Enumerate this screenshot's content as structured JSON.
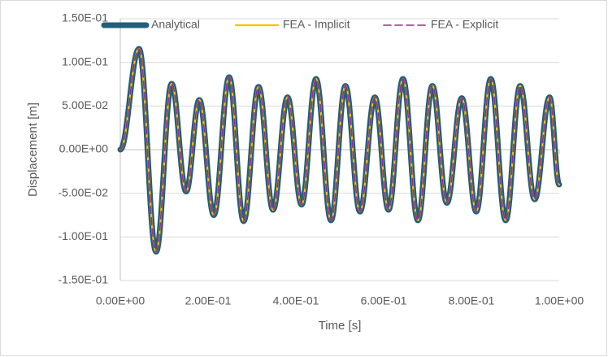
{
  "chart_data": {
    "type": "line",
    "xlabel": "Time [s]",
    "ylabel": "Displacement [m]",
    "x": [
      0,
      0.0426,
      0.0815,
      0.117,
      0.15,
      0.18,
      0.213,
      0.248,
      0.281,
      0.315,
      0.348,
      0.381,
      0.413,
      0.446,
      0.48,
      0.513,
      0.546,
      0.58,
      0.611,
      0.644,
      0.678,
      0.711,
      0.744,
      0.778,
      0.811,
      0.844,
      0.878,
      0.911,
      0.944,
      0.978,
      1.0
    ],
    "series": [
      {
        "name": "Analytical",
        "color": "#215f7c",
        "width": 7,
        "dash": "none",
        "values": [
          0,
          0.1155,
          -0.117,
          0.0755,
          -0.048,
          0.057,
          -0.075,
          0.083,
          -0.082,
          0.072,
          -0.069,
          0.06,
          -0.063,
          0.081,
          -0.081,
          0.073,
          -0.071,
          0.06,
          -0.069,
          0.081,
          -0.081,
          0.073,
          -0.061,
          0.059,
          -0.071,
          0.081,
          -0.081,
          0.073,
          -0.057,
          0.06,
          -0.04
        ]
      },
      {
        "name": "FEA - Implicit",
        "color": "#ffc000",
        "width": 2.2,
        "dash": "none",
        "values": [
          0,
          0.1155,
          -0.117,
          0.0755,
          -0.048,
          0.057,
          -0.075,
          0.083,
          -0.082,
          0.072,
          -0.069,
          0.06,
          -0.063,
          0.081,
          -0.081,
          0.073,
          -0.071,
          0.06,
          -0.069,
          0.081,
          -0.081,
          0.073,
          -0.061,
          0.059,
          -0.071,
          0.081,
          -0.081,
          0.073,
          -0.057,
          0.06,
          -0.04
        ]
      },
      {
        "name": "FEA - Explicit",
        "color": "#9b2d8c",
        "width": 1.6,
        "dash": "9 5",
        "values": [
          0,
          0.1155,
          -0.117,
          0.0755,
          -0.048,
          0.057,
          -0.075,
          0.083,
          -0.082,
          0.072,
          -0.069,
          0.06,
          -0.063,
          0.081,
          -0.081,
          0.073,
          -0.071,
          0.06,
          -0.069,
          0.081,
          -0.081,
          0.073,
          -0.061,
          0.059,
          -0.071,
          0.081,
          -0.081,
          0.073,
          -0.057,
          0.06,
          -0.04
        ]
      }
    ],
    "xlim": [
      0,
      1.0
    ],
    "xticks": [
      {
        "value": 0,
        "label": "0.00E+00"
      },
      {
        "value": 0.2,
        "label": "2.00E-01"
      },
      {
        "value": 0.4,
        "label": "4.00E-01"
      },
      {
        "value": 0.6,
        "label": "6.00E-01"
      },
      {
        "value": 0.8,
        "label": "8.00E-01"
      },
      {
        "value": 1.0,
        "label": "1.00E+00"
      }
    ],
    "ylim": [
      -0.15,
      0.15
    ],
    "yticks": [
      {
        "value": -0.15,
        "label": "-1.50E-01"
      },
      {
        "value": -0.1,
        "label": "-1.00E-01"
      },
      {
        "value": -0.05,
        "label": "-5.00E-02"
      },
      {
        "value": 0,
        "label": "0.00E+00"
      },
      {
        "value": 0.05,
        "label": "5.00E-02"
      },
      {
        "value": 0.1,
        "label": "1.00E-01"
      },
      {
        "value": 0.15,
        "label": "1.50E-01"
      }
    ],
    "grid": true,
    "legend": "top"
  }
}
